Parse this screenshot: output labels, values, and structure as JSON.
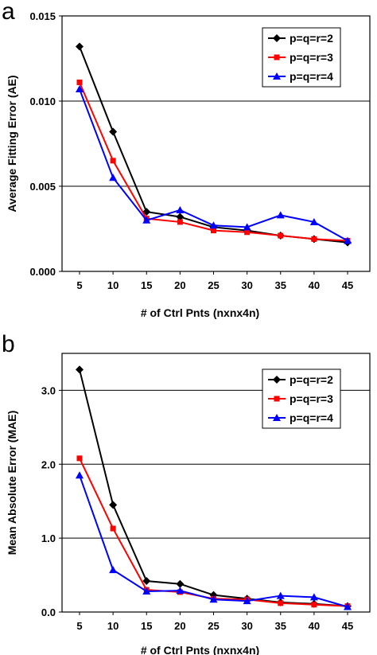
{
  "chart_data": [
    {
      "panel_label": "a",
      "type": "line",
      "xlabel": "# of Ctrl Pnts (nxnx4n)",
      "ylabel": "Average Fitting Error (AE)",
      "categories": [
        "5",
        "10",
        "15",
        "20",
        "25",
        "30",
        "35",
        "40",
        "45"
      ],
      "x": [
        5,
        10,
        15,
        20,
        25,
        30,
        35,
        40,
        45
      ],
      "ylim": [
        0,
        0.015
      ],
      "yticks": [
        0,
        0.005,
        0.01,
        0.015
      ],
      "ytick_labels": [
        "0.000",
        "0.005",
        "0.010",
        "0.015"
      ],
      "grid": "horizontal",
      "legend_position": "top-right",
      "series": [
        {
          "name": "p=q=r=2",
          "color": "#000000",
          "marker": "diamond",
          "values": [
            0.0132,
            0.0082,
            0.0035,
            0.0032,
            0.0026,
            0.0024,
            0.0021,
            0.0019,
            0.0017
          ]
        },
        {
          "name": "p=q=r=3",
          "color": "#ff0000",
          "marker": "square",
          "values": [
            0.0111,
            0.0065,
            0.0031,
            0.0029,
            0.0024,
            0.0023,
            0.0021,
            0.0019,
            0.0018
          ]
        },
        {
          "name": "p=q=r=4",
          "color": "#0000ff",
          "marker": "triangle",
          "values": [
            0.0107,
            0.0055,
            0.003,
            0.0036,
            0.0027,
            0.0026,
            0.0033,
            0.0029,
            0.0018
          ]
        }
      ]
    },
    {
      "panel_label": "b",
      "type": "line",
      "xlabel": "# of Ctrl Pnts (nxnx4n)",
      "ylabel": "Mean Absolute Error (MAE)",
      "categories": [
        "5",
        "10",
        "15",
        "20",
        "25",
        "30",
        "35",
        "40",
        "45"
      ],
      "x": [
        5,
        10,
        15,
        20,
        25,
        30,
        35,
        40,
        45
      ],
      "ylim": [
        0,
        3.5
      ],
      "yticks": [
        0,
        1,
        2,
        3
      ],
      "ytick_labels": [
        "0.0",
        "1.0",
        "2.0",
        "3.0"
      ],
      "grid": "horizontal",
      "legend_position": "top-right",
      "series": [
        {
          "name": "p=q=r=2",
          "color": "#000000",
          "marker": "diamond",
          "values": [
            3.28,
            1.45,
            0.42,
            0.38,
            0.23,
            0.18,
            0.13,
            0.11,
            0.08
          ]
        },
        {
          "name": "p=q=r=3",
          "color": "#ff0000",
          "marker": "square",
          "values": [
            2.08,
            1.13,
            0.3,
            0.27,
            0.18,
            0.17,
            0.12,
            0.1,
            0.08
          ]
        },
        {
          "name": "p=q=r=4",
          "color": "#0000ff",
          "marker": "triangle",
          "values": [
            1.85,
            0.57,
            0.28,
            0.29,
            0.17,
            0.15,
            0.22,
            0.2,
            0.07
          ]
        }
      ]
    }
  ]
}
